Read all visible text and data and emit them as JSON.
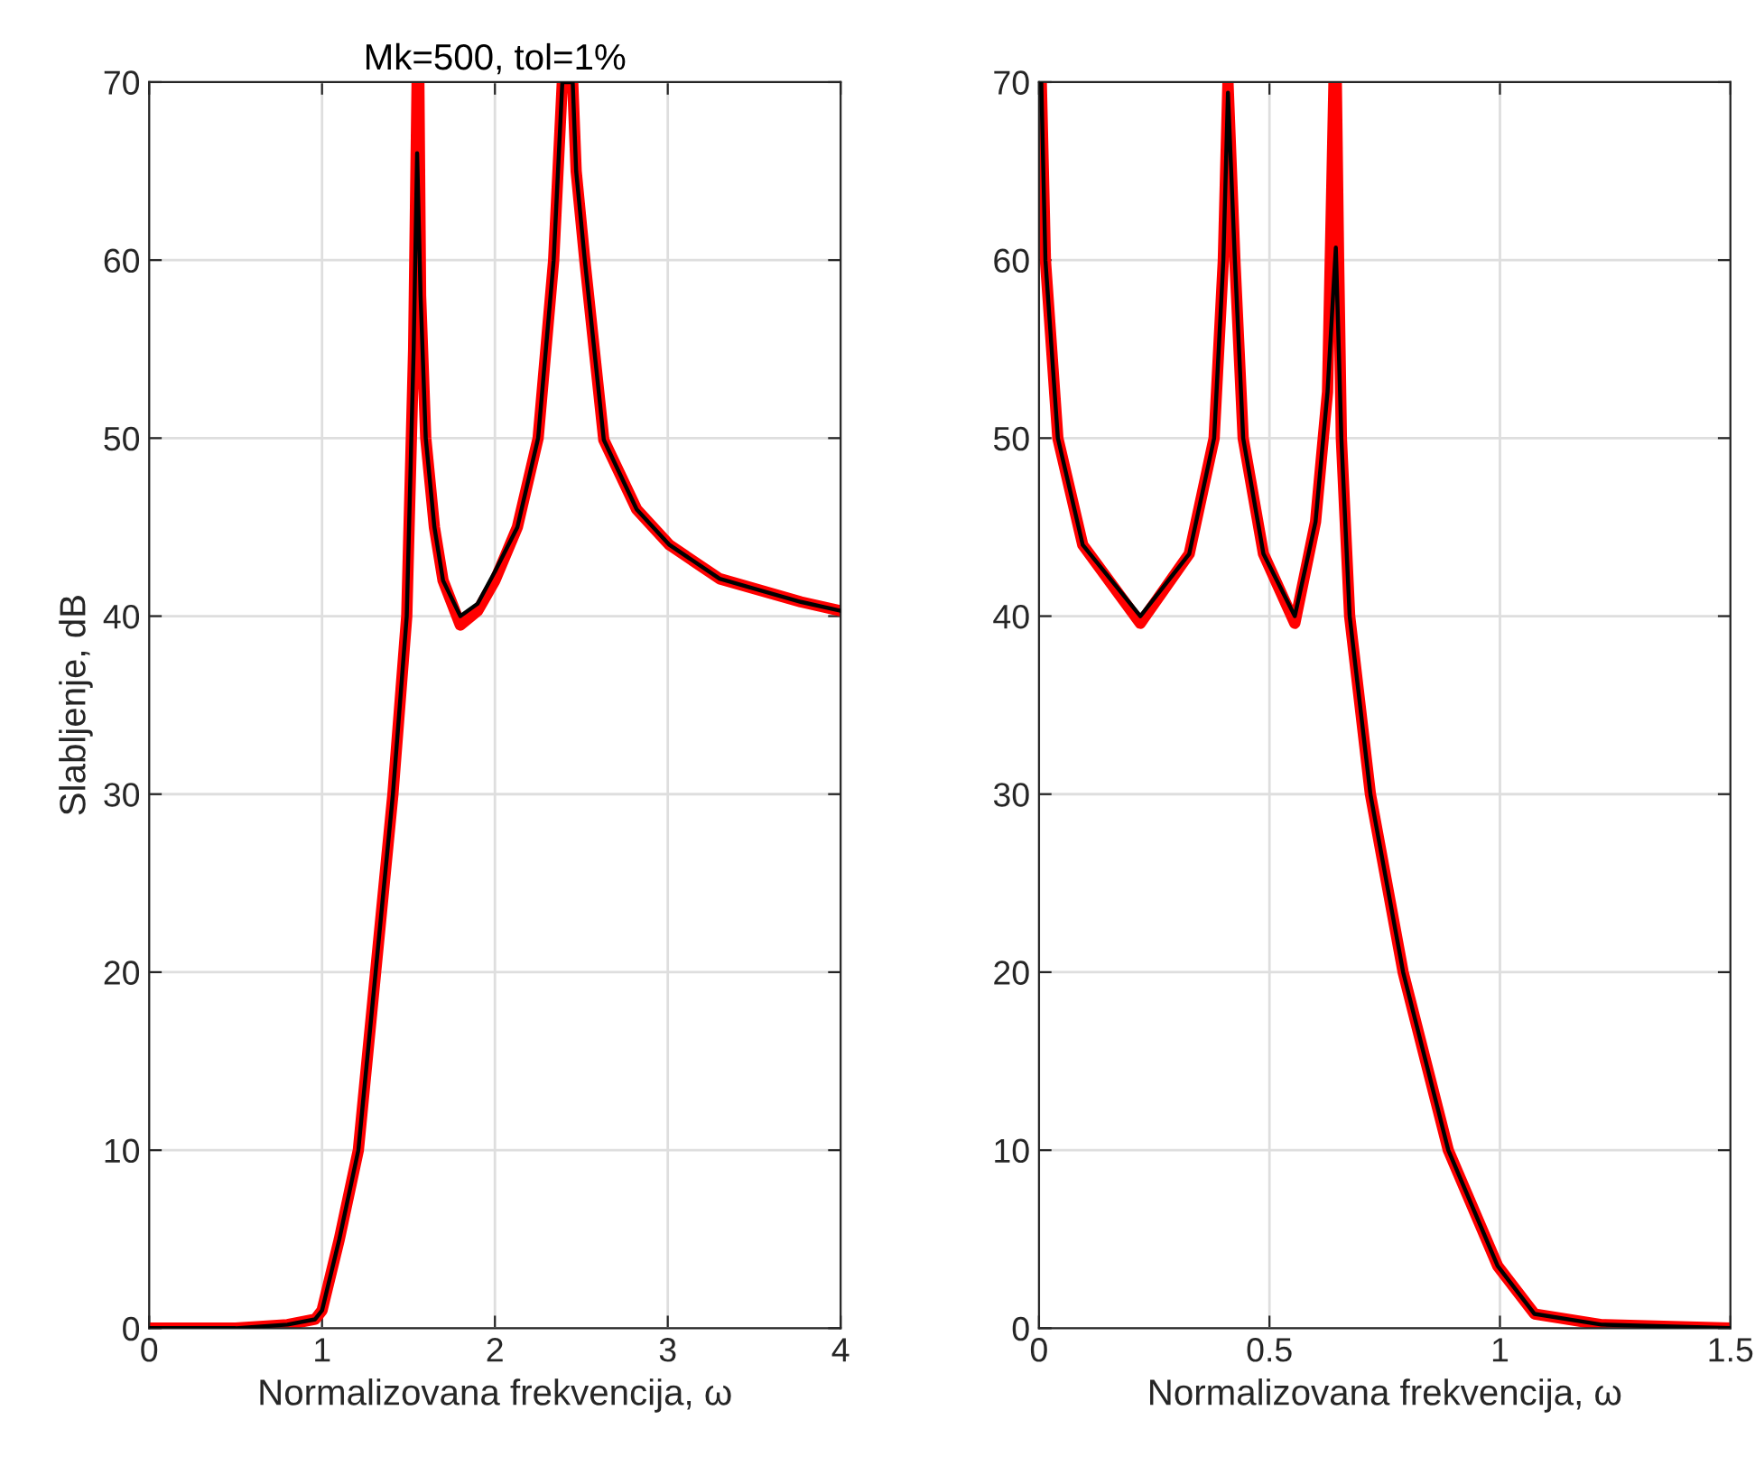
{
  "chart_data": [
    {
      "type": "line",
      "title": "Mk=500, tol=1%",
      "xlabel": "Normalizovana frekvencija, ω",
      "ylabel": "Slabljenje, dB",
      "xlim": [
        0,
        4
      ],
      "ylim": [
        0,
        70
      ],
      "xticks": [
        0,
        1,
        2,
        3,
        4
      ],
      "yticks": [
        0,
        10,
        20,
        30,
        40,
        50,
        60,
        70
      ],
      "grid": true,
      "legend": false,
      "series": [
        {
          "color": "#ff0000",
          "x": [
            0,
            0.5,
            0.8,
            0.96,
            1.0,
            1.1,
            1.21,
            1.31,
            1.41,
            1.49,
            1.53,
            1.55,
            1.56,
            1.57,
            1.6,
            1.65,
            1.7,
            1.8,
            1.9,
            2.0,
            2.13,
            2.25,
            2.34,
            2.39,
            2.42,
            2.45,
            2.47,
            2.52,
            2.63,
            2.82,
            3.01,
            3.3,
            3.77,
            4.0
          ],
          "values": [
            0,
            0,
            0.2,
            0.5,
            1,
            5,
            10,
            20,
            30,
            40,
            55,
            70,
            70,
            58,
            50,
            45,
            42,
            39.5,
            40.3,
            42,
            45,
            50,
            60,
            70,
            70,
            70,
            65,
            60,
            49.9,
            46,
            44,
            42.1,
            40.8,
            40.3
          ]
        },
        {
          "color": "#000000",
          "x": [
            0,
            0.5,
            0.8,
            0.96,
            1.0,
            1.1,
            1.21,
            1.31,
            1.41,
            1.49,
            1.53,
            1.55,
            1.57,
            1.6,
            1.65,
            1.7,
            1.8,
            1.9,
            2.0,
            2.13,
            2.25,
            2.34,
            2.39,
            2.42,
            2.45,
            2.47,
            2.52,
            2.63,
            2.82,
            3.01,
            3.3,
            3.77,
            4.0
          ],
          "values": [
            0,
            0,
            0.2,
            0.5,
            1,
            5,
            10,
            20,
            30,
            40,
            55,
            66,
            58,
            50,
            45,
            42,
            40,
            40.7,
            42.5,
            45,
            50,
            60,
            70,
            70,
            70,
            65,
            60,
            49.9,
            46,
            44,
            42.1,
            40.8,
            40.3
          ]
        }
      ]
    },
    {
      "type": "line",
      "xlabel": "Normalizovana frekvencija, ω",
      "xlim": [
        0,
        1.5
      ],
      "ylim": [
        0,
        70
      ],
      "xticks": [
        0,
        0.5,
        1,
        1.5
      ],
      "yticks": [
        0,
        10,
        20,
        30,
        40,
        50,
        60,
        70
      ],
      "grid": true,
      "legend": false,
      "series": [
        {
          "color": "#ff0000",
          "x": [
            0.005,
            0.014,
            0.041,
            0.095,
            0.22,
            0.326,
            0.38,
            0.4,
            0.41,
            0.425,
            0.443,
            0.487,
            0.555,
            0.6,
            0.626,
            0.64,
            0.645,
            0.65,
            0.656,
            0.674,
            0.719,
            0.79,
            0.888,
            0.995,
            1.075,
            1.22,
            1.5
          ],
          "values": [
            70,
            60,
            50,
            44,
            39.6,
            43.5,
            50,
            60,
            70,
            60,
            50,
            43.5,
            39.6,
            45.3,
            52.6,
            70,
            70,
            60,
            50,
            40,
            30,
            20,
            10,
            3.5,
            0.8,
            0.2,
            0
          ]
        },
        {
          "color": "#000000",
          "x": [
            0.005,
            0.014,
            0.041,
            0.095,
            0.22,
            0.326,
            0.38,
            0.4,
            0.41,
            0.425,
            0.443,
            0.487,
            0.555,
            0.6,
            0.626,
            0.644,
            0.656,
            0.674,
            0.719,
            0.79,
            0.888,
            0.995,
            1.075,
            1.22,
            1.5
          ],
          "values": [
            70,
            60,
            50,
            44,
            40,
            43.5,
            50,
            60,
            69.4,
            60,
            50,
            43.5,
            40,
            45.3,
            52.6,
            60.7,
            50,
            40,
            30,
            20,
            10,
            3.5,
            0.8,
            0.2,
            0
          ]
        }
      ]
    }
  ]
}
